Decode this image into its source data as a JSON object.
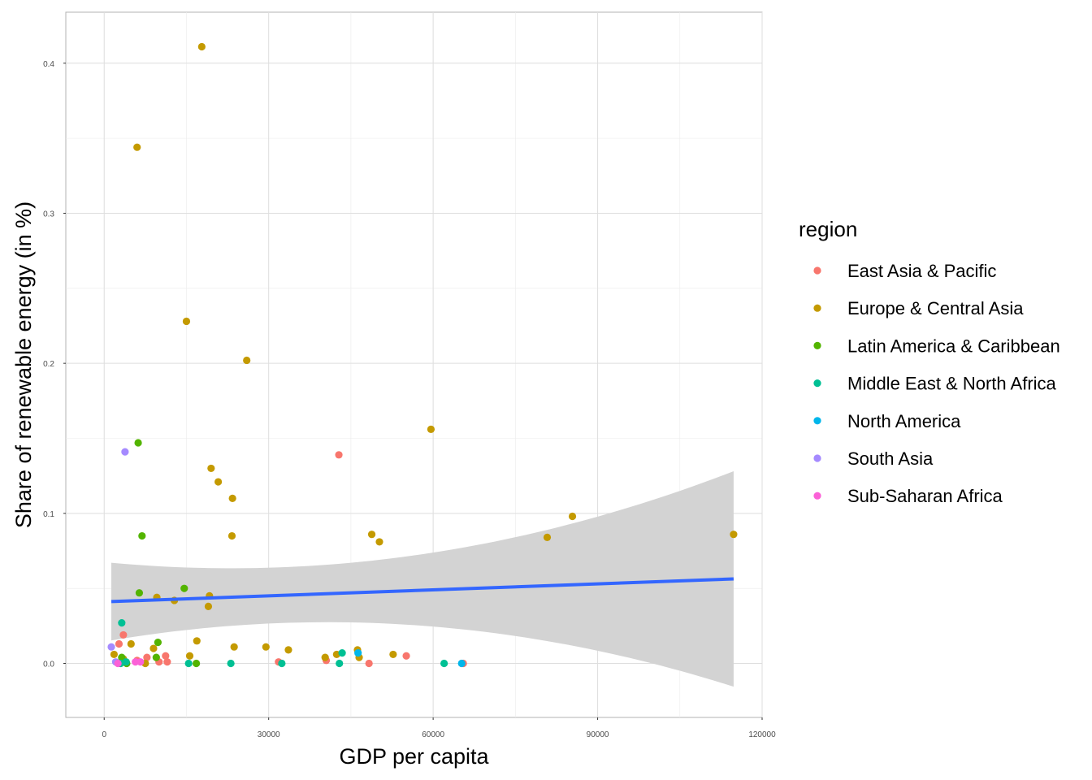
{
  "chart_data": {
    "type": "scatter",
    "title": "",
    "xlabel": "GDP per capita",
    "ylabel": "Share of renewable energy (in %)",
    "xlim": [
      -7000,
      120000
    ],
    "ylim": [
      -0.036,
      0.434
    ],
    "x_ticks": [
      0,
      30000,
      60000,
      90000,
      120000
    ],
    "x_tick_labels": [
      "0",
      "30000",
      "60000",
      "90000",
      "120000"
    ],
    "y_ticks": [
      0.0,
      0.1,
      0.2,
      0.3,
      0.4
    ],
    "y_tick_labels": [
      "0.0",
      "0.1",
      "0.2",
      "0.3",
      "0.4"
    ],
    "grid": true,
    "legend": {
      "title": "region",
      "position": "right"
    },
    "series": [
      {
        "name": "East Asia & Pacific",
        "color": "#F8766D",
        "points": [
          [
            42800,
            0.139
          ],
          [
            3500,
            0.019
          ],
          [
            2700,
            0.013
          ],
          [
            7800,
            0.004
          ],
          [
            11200,
            0.005
          ],
          [
            10000,
            0.001
          ],
          [
            40500,
            0.002
          ],
          [
            48300,
            0.0
          ],
          [
            55100,
            0.005
          ],
          [
            31800,
            0.001
          ],
          [
            65500,
            0.0
          ],
          [
            6000,
            0.002
          ],
          [
            11500,
            0.001
          ]
        ]
      },
      {
        "name": "Europe & Central Asia",
        "color": "#C49A00",
        "points": [
          [
            17800,
            0.411
          ],
          [
            6000,
            0.344
          ],
          [
            15000,
            0.228
          ],
          [
            26000,
            0.202
          ],
          [
            59600,
            0.156
          ],
          [
            19500,
            0.13
          ],
          [
            20800,
            0.121
          ],
          [
            23400,
            0.11
          ],
          [
            85400,
            0.098
          ],
          [
            23300,
            0.085
          ],
          [
            48800,
            0.086
          ],
          [
            50200,
            0.081
          ],
          [
            80800,
            0.084
          ],
          [
            114800,
            0.086
          ],
          [
            9600,
            0.044
          ],
          [
            12800,
            0.042
          ],
          [
            19200,
            0.045
          ],
          [
            19000,
            0.038
          ],
          [
            16900,
            0.015
          ],
          [
            1800,
            0.006
          ],
          [
            4900,
            0.013
          ],
          [
            9000,
            0.01
          ],
          [
            23700,
            0.011
          ],
          [
            29500,
            0.011
          ],
          [
            33600,
            0.009
          ],
          [
            40300,
            0.004
          ],
          [
            42400,
            0.006
          ],
          [
            46200,
            0.009
          ],
          [
            46500,
            0.004
          ],
          [
            52700,
            0.006
          ],
          [
            7500,
            0.0
          ],
          [
            15600,
            0.005
          ],
          [
            3500,
            0.003
          ]
        ]
      },
      {
        "name": "Latin America & Caribbean",
        "color": "#53B400",
        "points": [
          [
            6200,
            0.147
          ],
          [
            6900,
            0.085
          ],
          [
            6400,
            0.047
          ],
          [
            14600,
            0.05
          ],
          [
            9800,
            0.014
          ],
          [
            9500,
            0.004
          ],
          [
            16800,
            0.0
          ],
          [
            4100,
            0.0
          ],
          [
            3200,
            0.004
          ]
        ]
      },
      {
        "name": "Middle East & North Africa",
        "color": "#00C094",
        "points": [
          [
            3200,
            0.027
          ],
          [
            3000,
            0.0
          ],
          [
            43400,
            0.007
          ],
          [
            42900,
            0.0
          ],
          [
            23100,
            0.0
          ],
          [
            32400,
            0.0
          ],
          [
            62000,
            0.0
          ],
          [
            15400,
            0.0
          ],
          [
            4000,
            0.001
          ]
        ]
      },
      {
        "name": "North America",
        "color": "#00B6EB",
        "points": [
          [
            46300,
            0.007
          ],
          [
            65200,
            0.0
          ]
        ]
      },
      {
        "name": "South Asia",
        "color": "#A58AFF",
        "points": [
          [
            3800,
            0.141
          ],
          [
            1300,
            0.011
          ],
          [
            2100,
            0.001
          ]
        ]
      },
      {
        "name": "Sub-Saharan Africa",
        "color": "#FB61D7",
        "points": [
          [
            5700,
            0.001
          ],
          [
            2500,
            0.0
          ],
          [
            6600,
            0.001
          ]
        ]
      }
    ],
    "smooth": {
      "method": "lm",
      "color": "#3366FF",
      "band_color": "#D3D3D3",
      "x": [
        1300,
        114800
      ],
      "fit": [
        0.0412,
        0.0563
      ],
      "lower": [
        0.0153,
        -0.0155
      ],
      "upper": [
        0.0671,
        0.1281
      ],
      "mid": {
        "x": 28000,
        "lower": 0.0262,
        "upper": 0.0636
      }
    }
  }
}
